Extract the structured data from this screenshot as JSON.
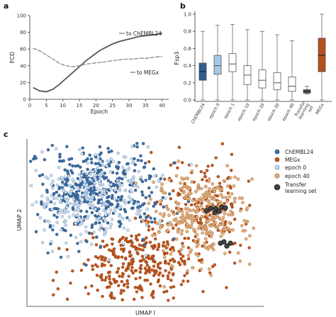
{
  "panels": {
    "a": "a",
    "b": "b",
    "c": "c"
  },
  "chart_data": [
    {
      "panel": "a",
      "type": "line",
      "xlabel": "Epoch",
      "ylabel": "FCD",
      "xlim": [
        0,
        42
      ],
      "ylim": [
        0,
        100
      ],
      "xticks": [
        0,
        5,
        10,
        15,
        20,
        25,
        30,
        35,
        40
      ],
      "yticks": [
        0,
        20,
        40,
        60,
        80,
        100
      ],
      "grid": false,
      "series": [
        {
          "name": "to ChEMBL24",
          "color": "#555555",
          "x": [
            1,
            3,
            5,
            7,
            9,
            11,
            13,
            15,
            17,
            19,
            21,
            23,
            25,
            27,
            29,
            31,
            33,
            35,
            37,
            39,
            40
          ],
          "y": [
            14,
            10,
            9,
            12,
            18,
            25,
            32,
            39,
            46,
            52,
            58,
            62,
            66,
            69,
            71,
            73,
            75,
            76,
            77,
            78,
            79
          ]
        },
        {
          "name": "to MEGx",
          "color": "#888888",
          "x": [
            1,
            3,
            5,
            7,
            9,
            11,
            13,
            15,
            17,
            19,
            21,
            23,
            25,
            27,
            29,
            31,
            33,
            35,
            37,
            39,
            40
          ],
          "y": [
            61,
            58,
            53,
            48,
            43,
            40,
            39,
            40,
            42,
            43,
            44,
            45,
            46,
            47,
            48,
            48,
            49,
            49,
            50,
            51,
            51
          ]
        }
      ]
    },
    {
      "panel": "b",
      "type": "box",
      "ylabel": "Fsp3",
      "ylim": [
        0,
        1
      ],
      "yticks": [
        "0.0",
        "0.2",
        "0.4",
        "0.6",
        "0.8",
        "1.0"
      ],
      "categories": [
        "ChEMBL24",
        "epoch 0",
        "epoch 1",
        "epoch 10",
        "epoch 20",
        "epoch 30",
        "epoch 40",
        "Transfer learning set",
        "MEGx"
      ],
      "boxes": [
        {
          "min": 0.0,
          "q1": 0.23,
          "median": 0.33,
          "q3": 0.43,
          "max": 0.8,
          "color": "#2e5f8e"
        },
        {
          "min": 0.0,
          "q1": 0.3,
          "median": 0.4,
          "q3": 0.52,
          "max": 0.87,
          "color": "#a8c9e6"
        },
        {
          "min": 0.0,
          "q1": 0.33,
          "median": 0.42,
          "q3": 0.54,
          "max": 0.88,
          "color": "#ffffff"
        },
        {
          "min": 0.0,
          "q1": 0.18,
          "median": 0.29,
          "q3": 0.4,
          "max": 0.82,
          "color": "#ffffff"
        },
        {
          "min": 0.0,
          "q1": 0.14,
          "median": 0.23,
          "q3": 0.35,
          "max": 0.8,
          "color": "#ffffff"
        },
        {
          "min": 0.0,
          "q1": 0.12,
          "median": 0.2,
          "q3": 0.32,
          "max": 0.76,
          "color": "#ffffff"
        },
        {
          "min": 0.0,
          "q1": 0.1,
          "median": 0.16,
          "q3": 0.27,
          "max": 0.69,
          "color": "#ffffff"
        },
        {
          "min": 0.07,
          "q1": 0.08,
          "median": 0.1,
          "q3": 0.12,
          "max": 0.16,
          "color": "#555555"
        },
        {
          "min": 0.0,
          "q1": 0.33,
          "median": 0.52,
          "q3": 0.72,
          "max": 1.0,
          "color": "#b5501f"
        }
      ]
    },
    {
      "panel": "c",
      "type": "scatter",
      "xlabel": "UMAP I",
      "ylabel": "UMAP 2",
      "legend": "right",
      "series": [
        {
          "name": "ChEMBL24",
          "color": "#3b6fa8"
        },
        {
          "name": "MEGx",
          "color": "#c4561a"
        },
        {
          "name": "epoch 0",
          "color": "#cfe1f2"
        },
        {
          "name": "epoch 40",
          "color": "#e8b07a"
        },
        {
          "name": "Transfer learning set",
          "color": "#444444"
        }
      ]
    }
  ]
}
